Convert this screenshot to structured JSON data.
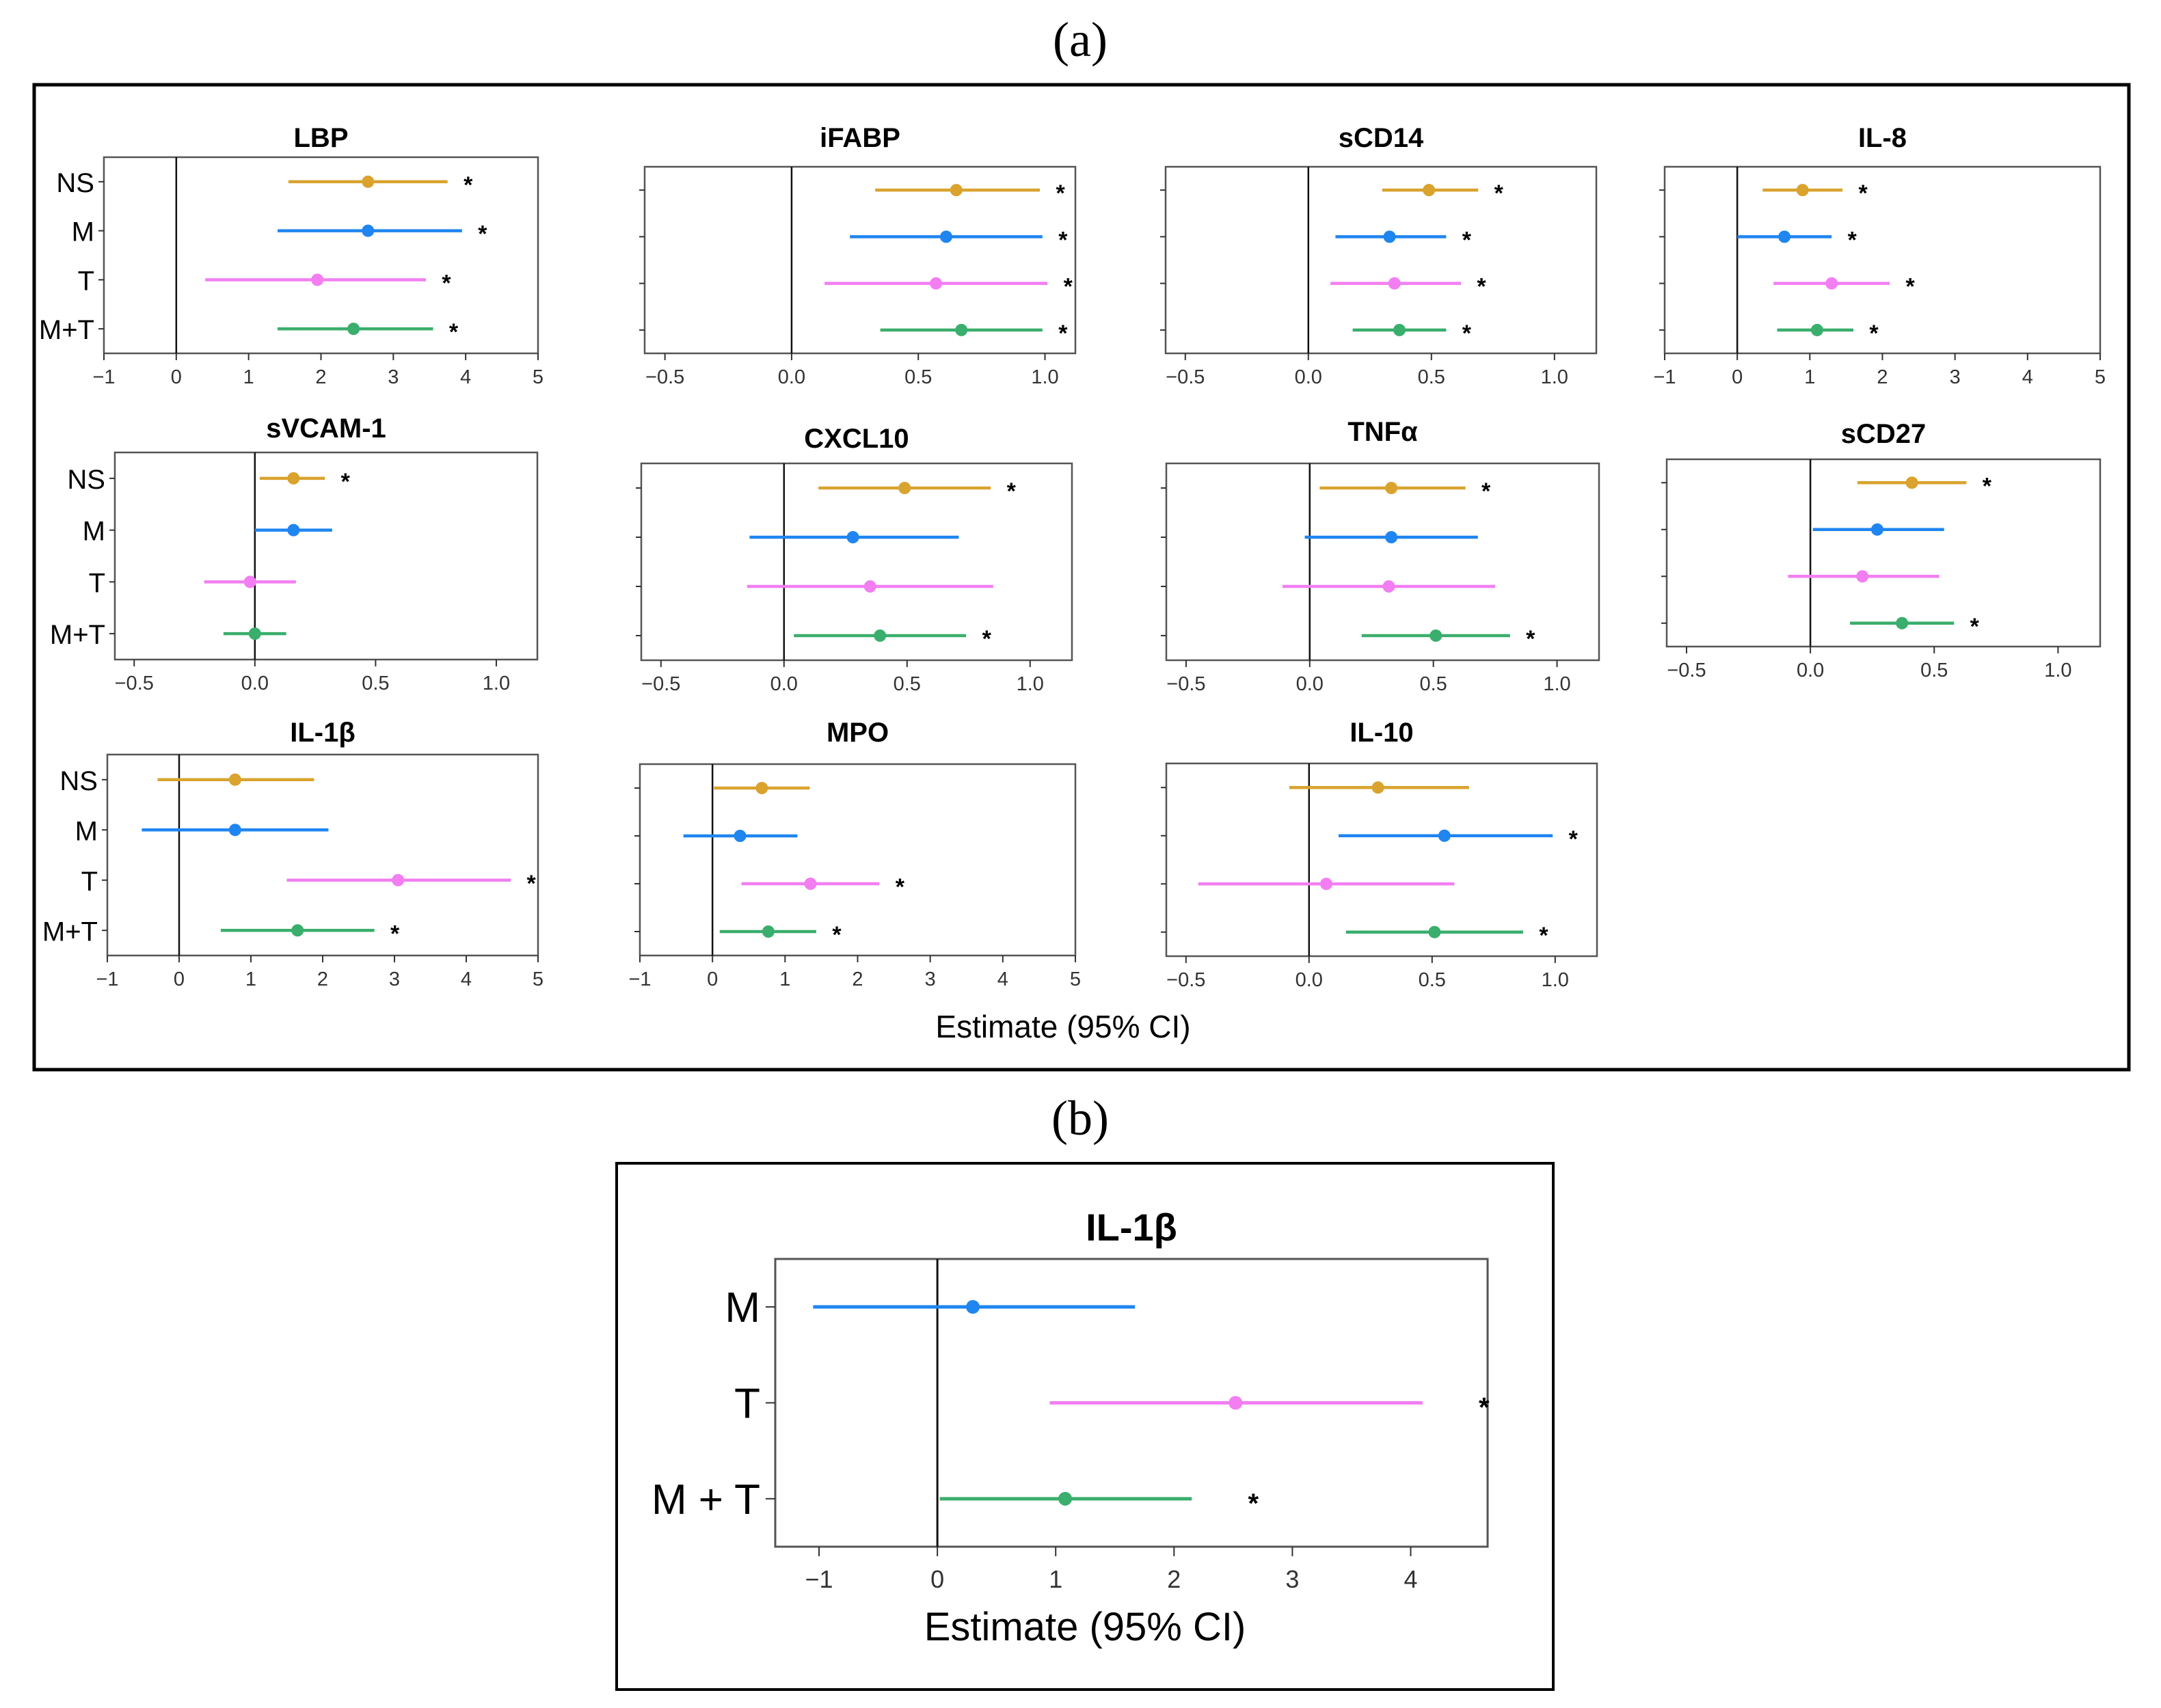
{
  "figure": {
    "label_a": "(a)",
    "label_b": "(b)",
    "xlabel": "Estimate (95% CI)",
    "legend_groups": [
      "NS",
      "M",
      "T",
      "M+T"
    ]
  },
  "colors": {
    "NS": "#d9a32e",
    "M": "#1f85f0",
    "T": "#f27ef2",
    "M+T": "#3aae6c",
    "frame": "#000000",
    "axis": "#333333"
  },
  "chart_data": [
    {
      "type": "forest",
      "panel": "a",
      "title": "LBP",
      "ylabels_shown": true,
      "xlim": [
        -1,
        5
      ],
      "xticks": [
        "-1",
        "0",
        "1",
        "2",
        "3",
        "4",
        "5"
      ],
      "series": [
        {
          "name": "NS",
          "estimate": 2.65,
          "lower": 1.55,
          "upper": 3.75,
          "significant": true
        },
        {
          "name": "M",
          "estimate": 2.65,
          "lower": 1.4,
          "upper": 3.95,
          "significant": true
        },
        {
          "name": "T",
          "estimate": 1.95,
          "lower": 0.4,
          "upper": 3.45,
          "significant": true
        },
        {
          "name": "M+T",
          "estimate": 2.45,
          "lower": 1.4,
          "upper": 3.55,
          "significant": true
        }
      ]
    },
    {
      "type": "forest",
      "panel": "a",
      "title": "iFABP",
      "ylabels_shown": false,
      "xlim": [
        -0.58,
        1.12
      ],
      "xticks": [
        "-0.5",
        "0.0",
        "0.5",
        "1.0"
      ],
      "series": [
        {
          "name": "NS",
          "estimate": 0.65,
          "lower": 0.33,
          "upper": 0.98,
          "significant": true
        },
        {
          "name": "M",
          "estimate": 0.61,
          "lower": 0.23,
          "upper": 0.99,
          "significant": true
        },
        {
          "name": "T",
          "estimate": 0.57,
          "lower": 0.13,
          "upper": 1.01,
          "significant": true
        },
        {
          "name": "M+T",
          "estimate": 0.67,
          "lower": 0.35,
          "upper": 0.99,
          "significant": true
        }
      ]
    },
    {
      "type": "forest",
      "panel": "a",
      "title": "sCD14",
      "ylabels_shown": false,
      "xlim": [
        -0.58,
        1.17
      ],
      "xticks": [
        "-0.5",
        "0.0",
        "0.5",
        "1.0"
      ],
      "series": [
        {
          "name": "NS",
          "estimate": 0.49,
          "lower": 0.3,
          "upper": 0.69,
          "significant": true
        },
        {
          "name": "M",
          "estimate": 0.33,
          "lower": 0.11,
          "upper": 0.56,
          "significant": true
        },
        {
          "name": "T",
          "estimate": 0.35,
          "lower": 0.09,
          "upper": 0.62,
          "significant": true
        },
        {
          "name": "M+T",
          "estimate": 0.37,
          "lower": 0.18,
          "upper": 0.56,
          "significant": true
        }
      ]
    },
    {
      "type": "forest",
      "panel": "a",
      "title": "IL-8",
      "ylabels_shown": false,
      "xlim": [
        -1,
        5
      ],
      "xticks": [
        "-1",
        "0",
        "1",
        "2",
        "3",
        "4",
        "5"
      ],
      "series": [
        {
          "name": "NS",
          "estimate": 0.9,
          "lower": 0.35,
          "upper": 1.45,
          "significant": true
        },
        {
          "name": "M",
          "estimate": 0.65,
          "lower": 0.0,
          "upper": 1.3,
          "significant": true
        },
        {
          "name": "T",
          "estimate": 1.3,
          "lower": 0.5,
          "upper": 2.1,
          "significant": true
        },
        {
          "name": "M+T",
          "estimate": 1.1,
          "lower": 0.55,
          "upper": 1.6,
          "significant": true
        }
      ]
    },
    {
      "type": "forest",
      "panel": "a",
      "title": "sVCAM-1",
      "ylabels_shown": true,
      "xlim": [
        -0.58,
        1.17
      ],
      "xticks": [
        "-0.5",
        "0.0",
        "0.5",
        "1.0"
      ],
      "series": [
        {
          "name": "NS",
          "estimate": 0.16,
          "lower": 0.02,
          "upper": 0.29,
          "significant": true
        },
        {
          "name": "M",
          "estimate": 0.16,
          "lower": 0.0,
          "upper": 0.32,
          "significant": false
        },
        {
          "name": "T",
          "estimate": -0.02,
          "lower": -0.21,
          "upper": 0.17,
          "significant": false
        },
        {
          "name": "M+T",
          "estimate": 0.0,
          "lower": -0.13,
          "upper": 0.13,
          "significant": false
        }
      ]
    },
    {
      "type": "forest",
      "panel": "a",
      "title": "CXCL10",
      "ylabels_shown": false,
      "xlim": [
        -0.58,
        1.17
      ],
      "xticks": [
        "-0.5",
        "0.0",
        "0.5",
        "1.0"
      ],
      "series": [
        {
          "name": "NS",
          "estimate": 0.49,
          "lower": 0.14,
          "upper": 0.84,
          "significant": true
        },
        {
          "name": "M",
          "estimate": 0.28,
          "lower": -0.14,
          "upper": 0.71,
          "significant": false
        },
        {
          "name": "T",
          "estimate": 0.35,
          "lower": -0.15,
          "upper": 0.85,
          "significant": false
        },
        {
          "name": "M+T",
          "estimate": 0.39,
          "lower": 0.04,
          "upper": 0.74,
          "significant": true
        }
      ]
    },
    {
      "type": "forest",
      "panel": "a",
      "title": "TNFα",
      "ylabels_shown": false,
      "xlim": [
        -0.58,
        1.17
      ],
      "xticks": [
        "-0.5",
        "0.0",
        "0.5",
        "1.0"
      ],
      "series": [
        {
          "name": "NS",
          "estimate": 0.33,
          "lower": 0.04,
          "upper": 0.63,
          "significant": true
        },
        {
          "name": "M",
          "estimate": 0.33,
          "lower": -0.02,
          "upper": 0.68,
          "significant": false
        },
        {
          "name": "T",
          "estimate": 0.32,
          "lower": -0.11,
          "upper": 0.75,
          "significant": false
        },
        {
          "name": "M+T",
          "estimate": 0.51,
          "lower": 0.21,
          "upper": 0.81,
          "significant": true
        }
      ]
    },
    {
      "type": "forest",
      "panel": "a",
      "title": "sCD27",
      "ylabels_shown": false,
      "xlim": [
        -0.58,
        1.17
      ],
      "xticks": [
        "-0.5",
        "0.0",
        "0.5",
        "1.0"
      ],
      "series": [
        {
          "name": "NS",
          "estimate": 0.41,
          "lower": 0.19,
          "upper": 0.63,
          "significant": true
        },
        {
          "name": "M",
          "estimate": 0.27,
          "lower": 0.01,
          "upper": 0.54,
          "significant": false
        },
        {
          "name": "T",
          "estimate": 0.21,
          "lower": -0.09,
          "upper": 0.52,
          "significant": false
        },
        {
          "name": "M+T",
          "estimate": 0.37,
          "lower": 0.16,
          "upper": 0.58,
          "significant": true
        }
      ]
    },
    {
      "type": "forest",
      "panel": "a",
      "title": "IL-1β",
      "ylabels_shown": true,
      "xlim": [
        -1,
        5
      ],
      "xticks": [
        "-1",
        "0",
        "1",
        "2",
        "3",
        "4",
        "5"
      ],
      "series": [
        {
          "name": "NS",
          "estimate": 0.78,
          "lower": -0.3,
          "upper": 1.88,
          "significant": false
        },
        {
          "name": "M",
          "estimate": 0.78,
          "lower": -0.52,
          "upper": 2.08,
          "significant": false
        },
        {
          "name": "T",
          "estimate": 3.05,
          "lower": 1.5,
          "upper": 4.62,
          "significant": true
        },
        {
          "name": "M+T",
          "estimate": 1.65,
          "lower": 0.58,
          "upper": 2.72,
          "significant": true
        }
      ]
    },
    {
      "type": "forest",
      "panel": "a",
      "title": "MPO",
      "ylabels_shown": false,
      "xlim": [
        -1,
        5
      ],
      "xticks": [
        "-1",
        "0",
        "1",
        "2",
        "3",
        "4",
        "5"
      ],
      "series": [
        {
          "name": "NS",
          "estimate": 0.68,
          "lower": 0.02,
          "upper": 1.34,
          "significant": false
        },
        {
          "name": "M",
          "estimate": 0.38,
          "lower": -0.4,
          "upper": 1.17,
          "significant": false
        },
        {
          "name": "T",
          "estimate": 1.35,
          "lower": 0.4,
          "upper": 2.3,
          "significant": true
        },
        {
          "name": "M+T",
          "estimate": 0.77,
          "lower": 0.1,
          "upper": 1.43,
          "significant": true
        }
      ]
    },
    {
      "type": "forest",
      "panel": "a",
      "title": "IL-10",
      "ylabels_shown": false,
      "xlim": [
        -0.58,
        1.17
      ],
      "xticks": [
        "-0.5",
        "0.0",
        "0.5",
        "1.0"
      ],
      "series": [
        {
          "name": "NS",
          "estimate": 0.28,
          "lower": -0.08,
          "upper": 0.65,
          "significant": false
        },
        {
          "name": "M",
          "estimate": 0.55,
          "lower": 0.12,
          "upper": 0.99,
          "significant": true
        },
        {
          "name": "T",
          "estimate": 0.07,
          "lower": -0.45,
          "upper": 0.59,
          "significant": false
        },
        {
          "name": "M+T",
          "estimate": 0.51,
          "lower": 0.15,
          "upper": 0.87,
          "significant": true
        }
      ]
    },
    {
      "type": "forest",
      "panel": "b",
      "title": "IL-1β",
      "ylabels_shown": true,
      "xlim": [
        -1.37,
        4.65
      ],
      "xticks": [
        "-1",
        "0",
        "1",
        "2",
        "3",
        "4"
      ],
      "series": [
        {
          "name": "M",
          "label": "M",
          "estimate": 0.3,
          "lower": -1.05,
          "upper": 1.67,
          "significant": false
        },
        {
          "name": "T",
          "label": "T",
          "estimate": 2.52,
          "lower": 0.95,
          "upper": 4.1,
          "significant": true
        },
        {
          "name": "M+T",
          "label": "M + T",
          "estimate": 1.08,
          "lower": 0.02,
          "upper": 2.15,
          "significant": true
        }
      ]
    }
  ]
}
